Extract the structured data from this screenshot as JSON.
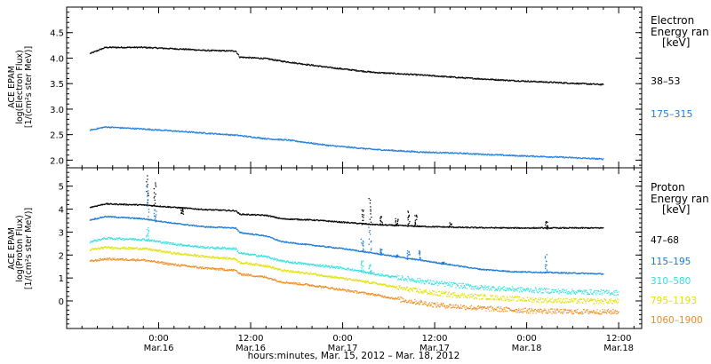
{
  "chart_data": [
    {
      "type": "scatter",
      "panel": "electron",
      "ylabel_lines": [
        "ACE EPAM",
        "log(Electron Flux)",
        "[1/(cm²s ster MeV)]"
      ],
      "legend_title_lines": [
        "Electron",
        "Energy ran",
        "[keV]"
      ],
      "ylim": [
        1.85,
        5.0
      ],
      "yticks": [
        2.0,
        2.5,
        3.0,
        3.5,
        4.0,
        4.5
      ],
      "ytick_labels": [
        "2.0",
        "2.5",
        "3.0",
        "3.5",
        "4.0",
        "4.5"
      ],
      "x_unit": "hours since Mar.15 00:00 UT",
      "xlim": [
        12,
        87
      ],
      "grid": false,
      "series": [
        {
          "name": "38–53",
          "color": "#000000",
          "points": [
            [
              15,
              4.1
            ],
            [
              17,
              4.22
            ],
            [
              22,
              4.22
            ],
            [
              28,
              4.18
            ],
            [
              30,
              4.16
            ],
            [
              34,
              4.15
            ],
            [
              34.5,
              4.03
            ],
            [
              38,
              4.0
            ],
            [
              40,
              3.95
            ],
            [
              41,
              3.93
            ],
            [
              46,
              3.83
            ],
            [
              52,
              3.73
            ],
            [
              58,
              3.68
            ],
            [
              64,
              3.62
            ],
            [
              70,
              3.57
            ],
            [
              76,
              3.53
            ],
            [
              82,
              3.49
            ]
          ]
        },
        {
          "name": "175–315",
          "color": "#1f7fe0",
          "points": [
            [
              15,
              2.6
            ],
            [
              17,
              2.66
            ],
            [
              22,
              2.62
            ],
            [
              28,
              2.56
            ],
            [
              34,
              2.5
            ],
            [
              38,
              2.43
            ],
            [
              41,
              2.4
            ],
            [
              46,
              2.3
            ],
            [
              52,
              2.22
            ],
            [
              58,
              2.17
            ],
            [
              64,
              2.14
            ],
            [
              70,
              2.1
            ],
            [
              76,
              2.07
            ],
            [
              82,
              2.03
            ]
          ]
        }
      ]
    },
    {
      "type": "scatter",
      "panel": "proton",
      "ylabel_lines": [
        "ACE EPAM",
        "log(Proton Flux)",
        "[1/(cm²s ster MeV)]"
      ],
      "legend_title_lines": [
        "Proton",
        "Energy ran",
        "[keV]"
      ],
      "ylim": [
        -1.2,
        5.8
      ],
      "yticks": [
        0,
        1,
        2,
        3,
        4,
        5
      ],
      "ytick_labels": [
        "0",
        "1",
        "2",
        "3",
        "4",
        "5"
      ],
      "xlim": [
        12,
        87
      ],
      "xticks": [
        24,
        36,
        48,
        60,
        72,
        84
      ],
      "xtick_time": [
        "0:00",
        "12:00",
        "0:00",
        "12:00",
        "0:00",
        "12:00"
      ],
      "xtick_date": [
        "Mar.16",
        "Mar.16",
        "Mar.17",
        "Mar.17",
        "Mar.18",
        "Mar.18"
      ],
      "xlabel": "hours:minutes, Mar. 15, 2012 – Mar. 18, 2012",
      "grid": false,
      "series": [
        {
          "name": "47–68",
          "color": "#000000",
          "points": [
            [
              15,
              4.1
            ],
            [
              17,
              4.25
            ],
            [
              22,
              4.2
            ],
            [
              26,
              4.1
            ],
            [
              30,
              4.0
            ],
            [
              34,
              3.95
            ],
            [
              34.5,
              3.8
            ],
            [
              38,
              3.75
            ],
            [
              40,
              3.6
            ],
            [
              44,
              3.55
            ],
            [
              48,
              3.45
            ],
            [
              52,
              3.35
            ],
            [
              58,
              3.27
            ],
            [
              64,
              3.22
            ],
            [
              70,
              3.2
            ],
            [
              76,
              3.2
            ],
            [
              82,
              3.2
            ]
          ],
          "spikes": [
            [
              22.5,
              5.5
            ],
            [
              23.5,
              5.2
            ],
            [
              27,
              3.8
            ],
            [
              50.5,
              4.0
            ],
            [
              51.5,
              4.5
            ],
            [
              53,
              3.7
            ],
            [
              55,
              3.6
            ],
            [
              56.5,
              3.9
            ],
            [
              57.5,
              3.8
            ],
            [
              62,
              3.4
            ],
            [
              74.5,
              3.5
            ]
          ]
        },
        {
          "name": "115–195",
          "color": "#1a78d6",
          "points": [
            [
              15,
              3.55
            ],
            [
              17,
              3.7
            ],
            [
              22,
              3.6
            ],
            [
              26,
              3.4
            ],
            [
              30,
              3.25
            ],
            [
              34,
              3.2
            ],
            [
              34.5,
              3.0
            ],
            [
              38,
              2.85
            ],
            [
              40,
              2.6
            ],
            [
              44,
              2.45
            ],
            [
              48,
              2.3
            ],
            [
              50,
              2.2
            ],
            [
              54,
              2.0
            ],
            [
              58,
              1.8
            ],
            [
              62,
              1.6
            ],
            [
              66,
              1.4
            ],
            [
              70,
              1.3
            ],
            [
              76,
              1.25
            ],
            [
              82,
              1.2
            ]
          ],
          "spikes": [
            [
              22.5,
              5.0
            ],
            [
              23.5,
              4.0
            ],
            [
              50.5,
              2.7
            ],
            [
              51.5,
              3.2
            ],
            [
              53,
              2.3
            ],
            [
              55,
              2.0
            ],
            [
              56.5,
              2.2
            ],
            [
              58,
              2.2
            ],
            [
              61,
              1.7
            ],
            [
              74.5,
              2.0
            ]
          ]
        },
        {
          "name": "310–580",
          "color": "#2fe0e0",
          "points": [
            [
              15,
              2.6
            ],
            [
              17,
              2.75
            ],
            [
              22,
              2.7
            ],
            [
              26,
              2.5
            ],
            [
              30,
              2.35
            ],
            [
              34,
              2.3
            ],
            [
              34.5,
              2.1
            ],
            [
              38,
              1.95
            ],
            [
              40,
              1.75
            ],
            [
              44,
              1.6
            ],
            [
              48,
              1.45
            ],
            [
              52,
              1.2
            ],
            [
              56,
              1.0
            ],
            [
              60,
              0.8
            ],
            [
              66,
              0.6
            ],
            [
              72,
              0.5
            ],
            [
              78,
              0.42
            ],
            [
              84,
              0.38
            ]
          ],
          "spikes": [
            [
              22.5,
              3.2
            ],
            [
              50.5,
              1.8
            ],
            [
              51.5,
              1.6
            ]
          ]
        },
        {
          "name": "795–1193",
          "color": "#e0e000",
          "points": [
            [
              15,
              2.25
            ],
            [
              17,
              2.35
            ],
            [
              22,
              2.3
            ],
            [
              26,
              2.1
            ],
            [
              30,
              1.95
            ],
            [
              34,
              1.85
            ],
            [
              34.5,
              1.7
            ],
            [
              38,
              1.55
            ],
            [
              40,
              1.35
            ],
            [
              44,
              1.2
            ],
            [
              48,
              1.0
            ],
            [
              52,
              0.8
            ],
            [
              56,
              0.55
            ],
            [
              60,
              0.35
            ],
            [
              66,
              0.2
            ],
            [
              72,
              0.08
            ],
            [
              78,
              0.02
            ],
            [
              84,
              0.0
            ]
          ],
          "spikes": []
        },
        {
          "name": "1060–1900",
          "color": "#f08a1c",
          "points": [
            [
              15,
              1.75
            ],
            [
              17,
              1.85
            ],
            [
              22,
              1.8
            ],
            [
              26,
              1.6
            ],
            [
              30,
              1.45
            ],
            [
              34,
              1.35
            ],
            [
              34.5,
              1.2
            ],
            [
              38,
              1.05
            ],
            [
              40,
              0.85
            ],
            [
              44,
              0.7
            ],
            [
              48,
              0.5
            ],
            [
              52,
              0.3
            ],
            [
              56,
              0.05
            ],
            [
              60,
              -0.15
            ],
            [
              66,
              -0.3
            ],
            [
              72,
              -0.4
            ],
            [
              78,
              -0.45
            ],
            [
              84,
              -0.45
            ]
          ],
          "spikes": []
        }
      ]
    }
  ]
}
